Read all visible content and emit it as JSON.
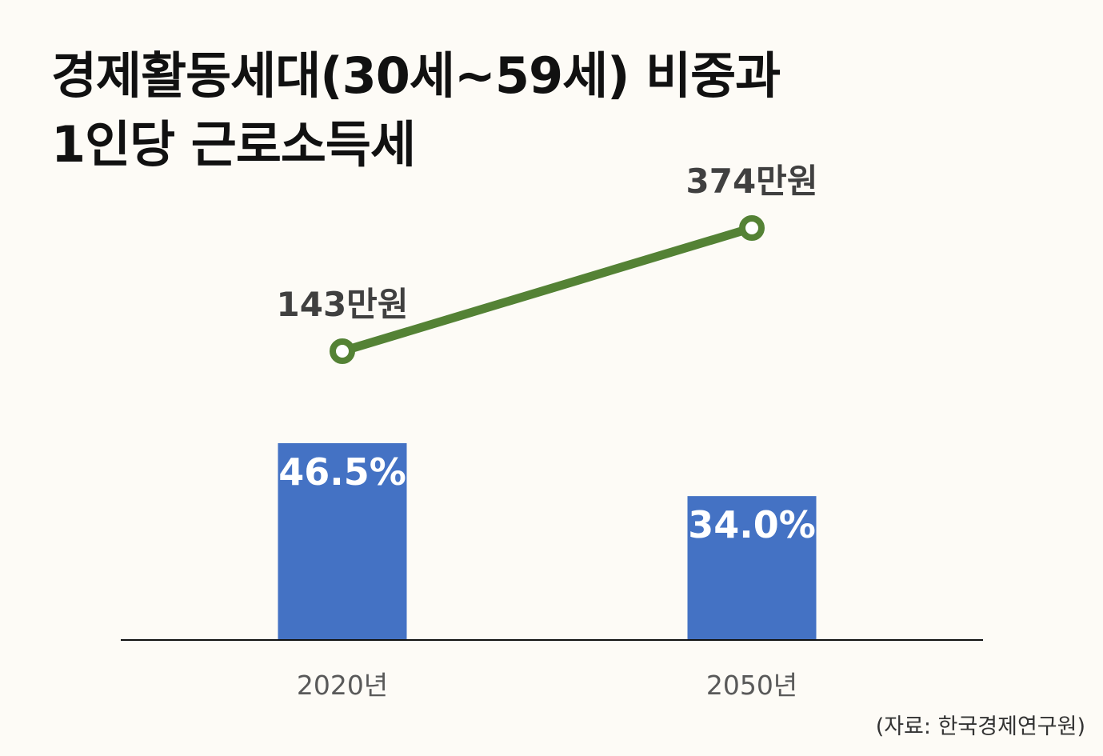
{
  "title": {
    "line1": "경제활동세대(30세~59세) 비중과",
    "line2": "1인당 근로소득세"
  },
  "source": "(자료: 한국경제연구원)",
  "colors": {
    "background": "#fdfbf6",
    "bar": "#4472c4",
    "line": "#548235",
    "bar_label": "#ffffff",
    "line_label": "#404040",
    "axis_label": "#595959",
    "axis": "#111111"
  },
  "chart_data": {
    "type": "bar",
    "categories": [
      "2020년",
      "2050년"
    ],
    "series": [
      {
        "type": "bar",
        "values": [
          46.5,
          34.0
        ],
        "labels": [
          "46.5%",
          "34.0%"
        ],
        "unit": "%"
      },
      {
        "type": "line",
        "values": [
          143,
          374
        ],
        "labels": [
          "143만원",
          "374만원"
        ],
        "unit": "만원"
      }
    ],
    "legend": "none",
    "grid": false
  }
}
